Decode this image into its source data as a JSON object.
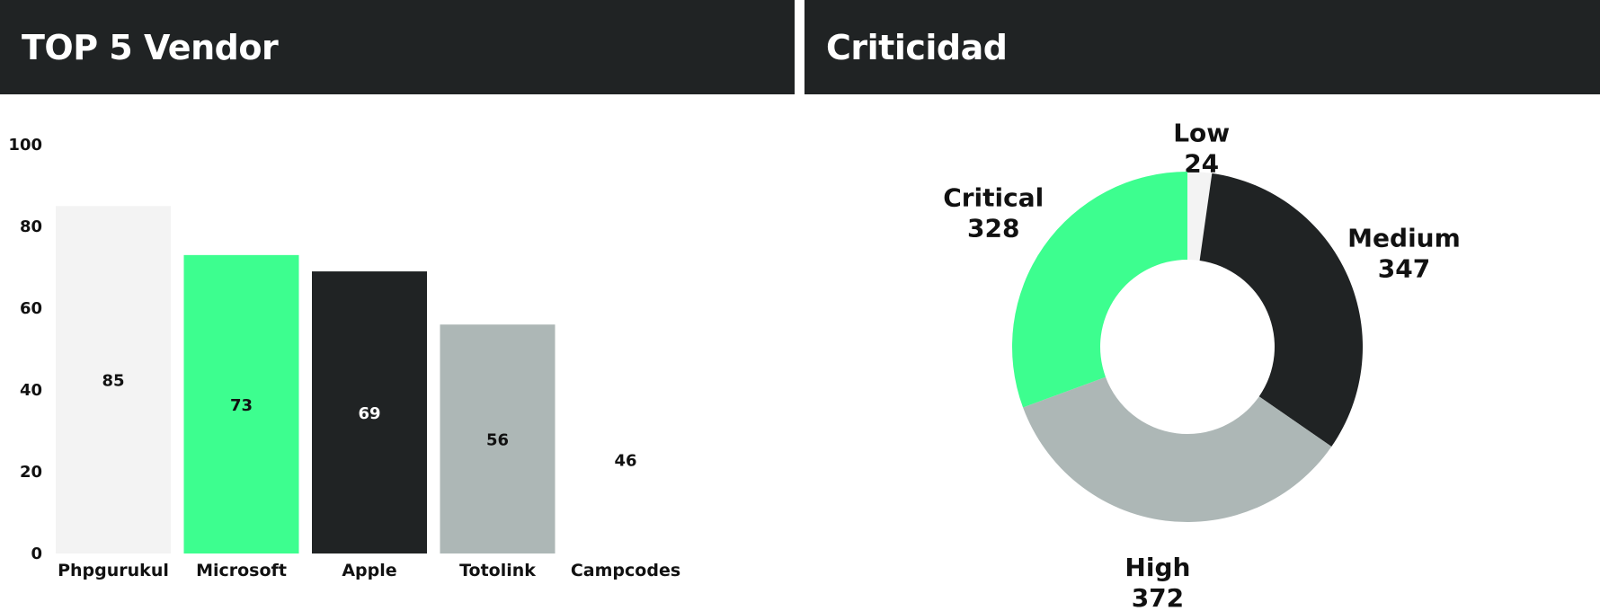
{
  "panels": {
    "left_title": "TOP 5 Vendor",
    "right_title": "Criticidad"
  },
  "chart_data": [
    {
      "type": "bar",
      "title": "TOP 5 Vendor",
      "categories": [
        "Phpgurukul",
        "Microsoft",
        "Apple",
        "Totolink",
        "Campcodes"
      ],
      "values": [
        85,
        73,
        69,
        56,
        46
      ],
      "colors": [
        "#f3f3f3",
        "#3dfe8f",
        "#202324",
        "#adb7b6",
        "#ffffff"
      ],
      "label_colors": [
        "#111111",
        "#111111",
        "#ffffff",
        "#111111",
        "#111111"
      ],
      "ylim": [
        0,
        100
      ],
      "yticks": [
        "0",
        "20",
        "40",
        "60",
        "80",
        "100"
      ],
      "grid": false
    },
    {
      "type": "pie",
      "title": "Criticidad",
      "donut": true,
      "labels": [
        "Low",
        "Medium",
        "High",
        "Critical"
      ],
      "values": [
        24,
        347,
        372,
        328
      ],
      "colors": [
        "#f3f3f3",
        "#202324",
        "#adb7b6",
        "#3dfe8f"
      ]
    }
  ]
}
